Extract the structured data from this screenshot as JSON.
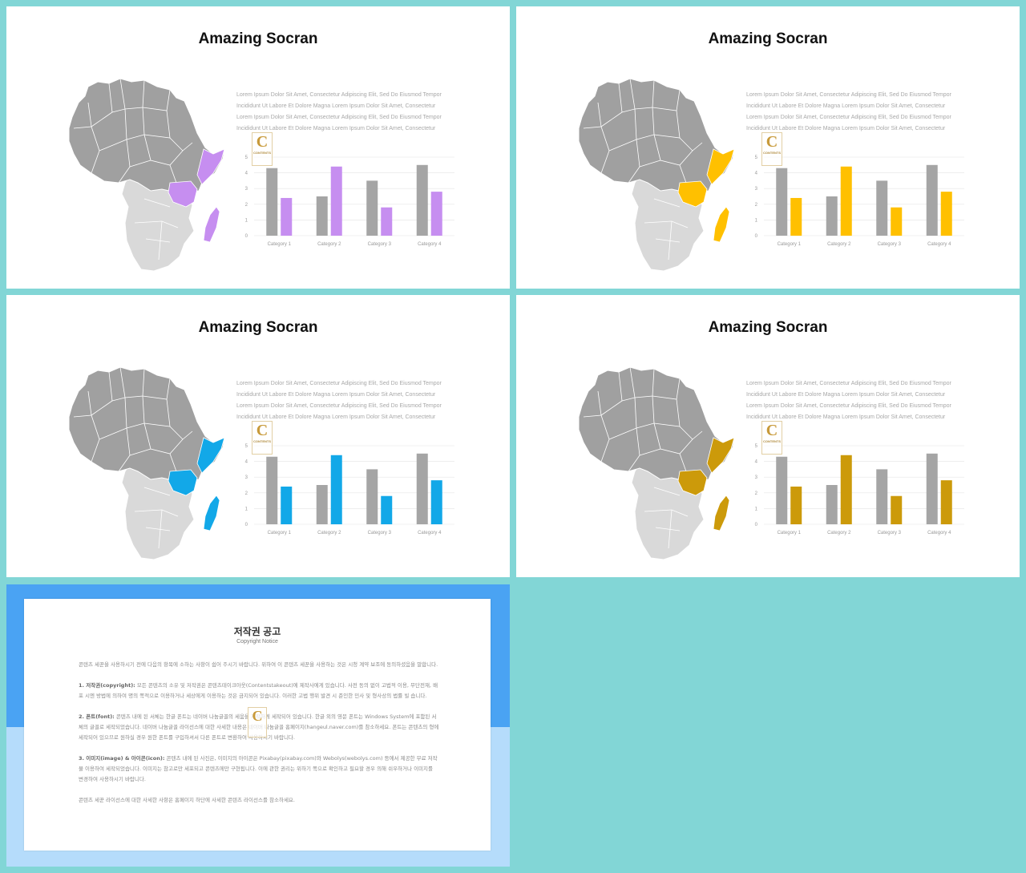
{
  "slides": [
    {
      "title": "Amazing Socran",
      "accent": "#c68ef0"
    },
    {
      "title": "Amazing Socran",
      "accent": "#ffc000"
    },
    {
      "title": "Amazing Socran",
      "accent": "#12a8e8"
    },
    {
      "title": "Amazing Socran",
      "accent": "#cc9a0a"
    }
  ],
  "body_lines": [
    "Lorem Ipsum Dolor Sit Amet, Consectetur Adipiscing Elit, Sed Do Eiusmod Tempor",
    "Incididunt Ut Labore Et Dolore Magna Lorem Ipsum Dolor Sit Amet, Consectetur",
    "Lorem Ipsum Dolor Sit Amet, Consectetur Adipiscing Elit, Sed Do Eiusmod Tempor",
    "Incididunt Ut Labore Et Dolore Magna Lorem Ipsum Dolor Sit Amet, Consectetur"
  ],
  "logo": {
    "letter": "C",
    "text": "CONTENTS"
  },
  "colors": {
    "map_north": "#a0a0a0",
    "map_south": "#d9d9d9",
    "bar_gray": "#a5a5a5",
    "grid": "#e4e4e4"
  },
  "chart_data": {
    "type": "bar",
    "categories": [
      "Category 1",
      "Category 2",
      "Category 3",
      "Category 4"
    ],
    "series": [
      {
        "values": [
          4.3,
          2.5,
          3.5,
          4.5
        ]
      },
      {
        "values": [
          2.4,
          4.4,
          1.8,
          2.8
        ]
      }
    ],
    "yticks": [
      "0",
      "1",
      "2",
      "3",
      "4",
      "5"
    ],
    "ylim": [
      0,
      5
    ],
    "grid": true
  },
  "copyright": {
    "title": "저작권 공고",
    "subtitle": "Copyright Notice",
    "intro": "콘텐츠 세꾼을 사용하시기 전에 다음의 항목에 소하는 사항이 쉽어 주시기 바랍니다. 위하여 이 콘텐츠 세꾼을 사용하는 것은 시청 계약 보조에 동의하셨음을 말합니다.",
    "p1_heading": "1. 저작권(copyright):",
    "p1": "모든 콘텐츠의 소유 및 저작권은 콘텐츠테이크아웃(Contentstakeout)에 제작사에게 있습니다. 사전 동의 없이 고법적 이용, 무단전재, 배포 시엔 방법에 의하여 명의 쪽적으로 이용하거나 세상에게 이용하는 것은 금지되어 있습니다. 이러한 고법 행위 발견 시 준인한 민사 및 형사상의 법률 빌 습니다.",
    "p2_heading": "2. 폰트(font):",
    "p2": "콘텐츠 내에 된 서체는 한글 폰트는 네이버 나눔글꼴의 세움을 저작하게 세작되어 있습니다. 한글 외의 영문 폰트는 Windows System에 포함된 서체의 글꼴로 세작되었습니다. 네이버 나눔글꼴 라이선스에 대한 사세한 내용은 네이버 나눔글꼴 홈페이지(hangeul.naver.com)를 참소하세요. 폰트는 콘텐츠의 형에 세작되어 있으므로 원하실 경우 원한 폰트를 구입하셔서 다른 폰트로 변환하여 사용하시기 바랍니다.",
    "p3_heading": "3. 이미지(image) & 아이콘(icon):",
    "p3": "콘텐츠 내에 된 사진은, 이미지의 아이콘은 Pixabay(pixabay.com)와 Webolys(webolys.com) 등에서 제공한 무료 저작물 이용하여 세작되었습니다. 이미지는 참고로만 세포되고 콘텐츠에만 구현됩니다. 이에 관한 권리는 위하기 쪽으로 확인하고 필요할 경우 의해 쉬우하거나 이미지를 변경하여 사용하시기 바랍니다.",
    "outro": "콘텐츠 세꾼 라이선스에 대한 사세한 사항은 홈페이지 하단에 사세한 콘텐츠 라이선스를 참소하세요."
  }
}
